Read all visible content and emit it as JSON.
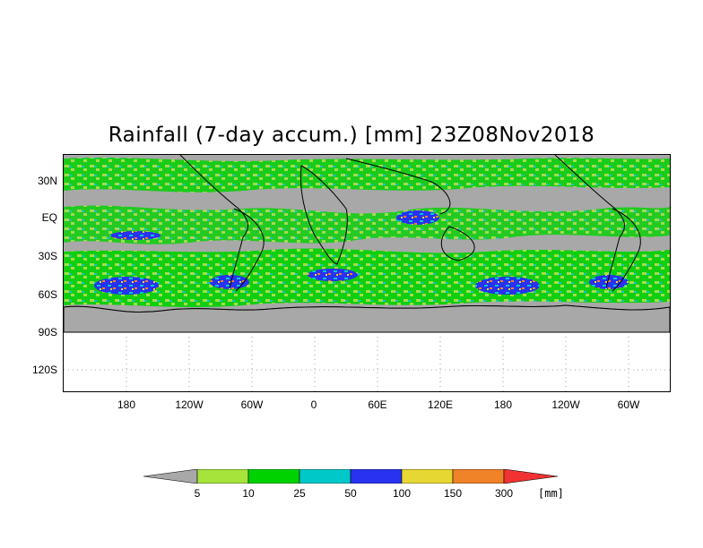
{
  "title": "Rainfall (7-day accum.) [mm] 23Z08Nov2018",
  "lat_labels": [
    "30N",
    "EQ",
    "30S",
    "60S",
    "90S",
    "120S"
  ],
  "lon_labels": [
    "180",
    "120W",
    "60W",
    "0",
    "60E",
    "120E",
    "180",
    "120W",
    "60W"
  ],
  "legend": {
    "bounds": [
      "5",
      "10",
      "25",
      "50",
      "100",
      "150",
      "300"
    ],
    "unit": "[mm]",
    "colors": [
      "#a8a8a8",
      "#a6e43c",
      "#00d200",
      "#00c8c8",
      "#2832f0",
      "#e6d732",
      "#f08228",
      "#f03232"
    ]
  },
  "map_colors": {
    "ocean_dry": "#a8a8a8",
    "land_dry": "#a8a8a8",
    "coast": "#000000",
    "grid": "#888888"
  }
}
